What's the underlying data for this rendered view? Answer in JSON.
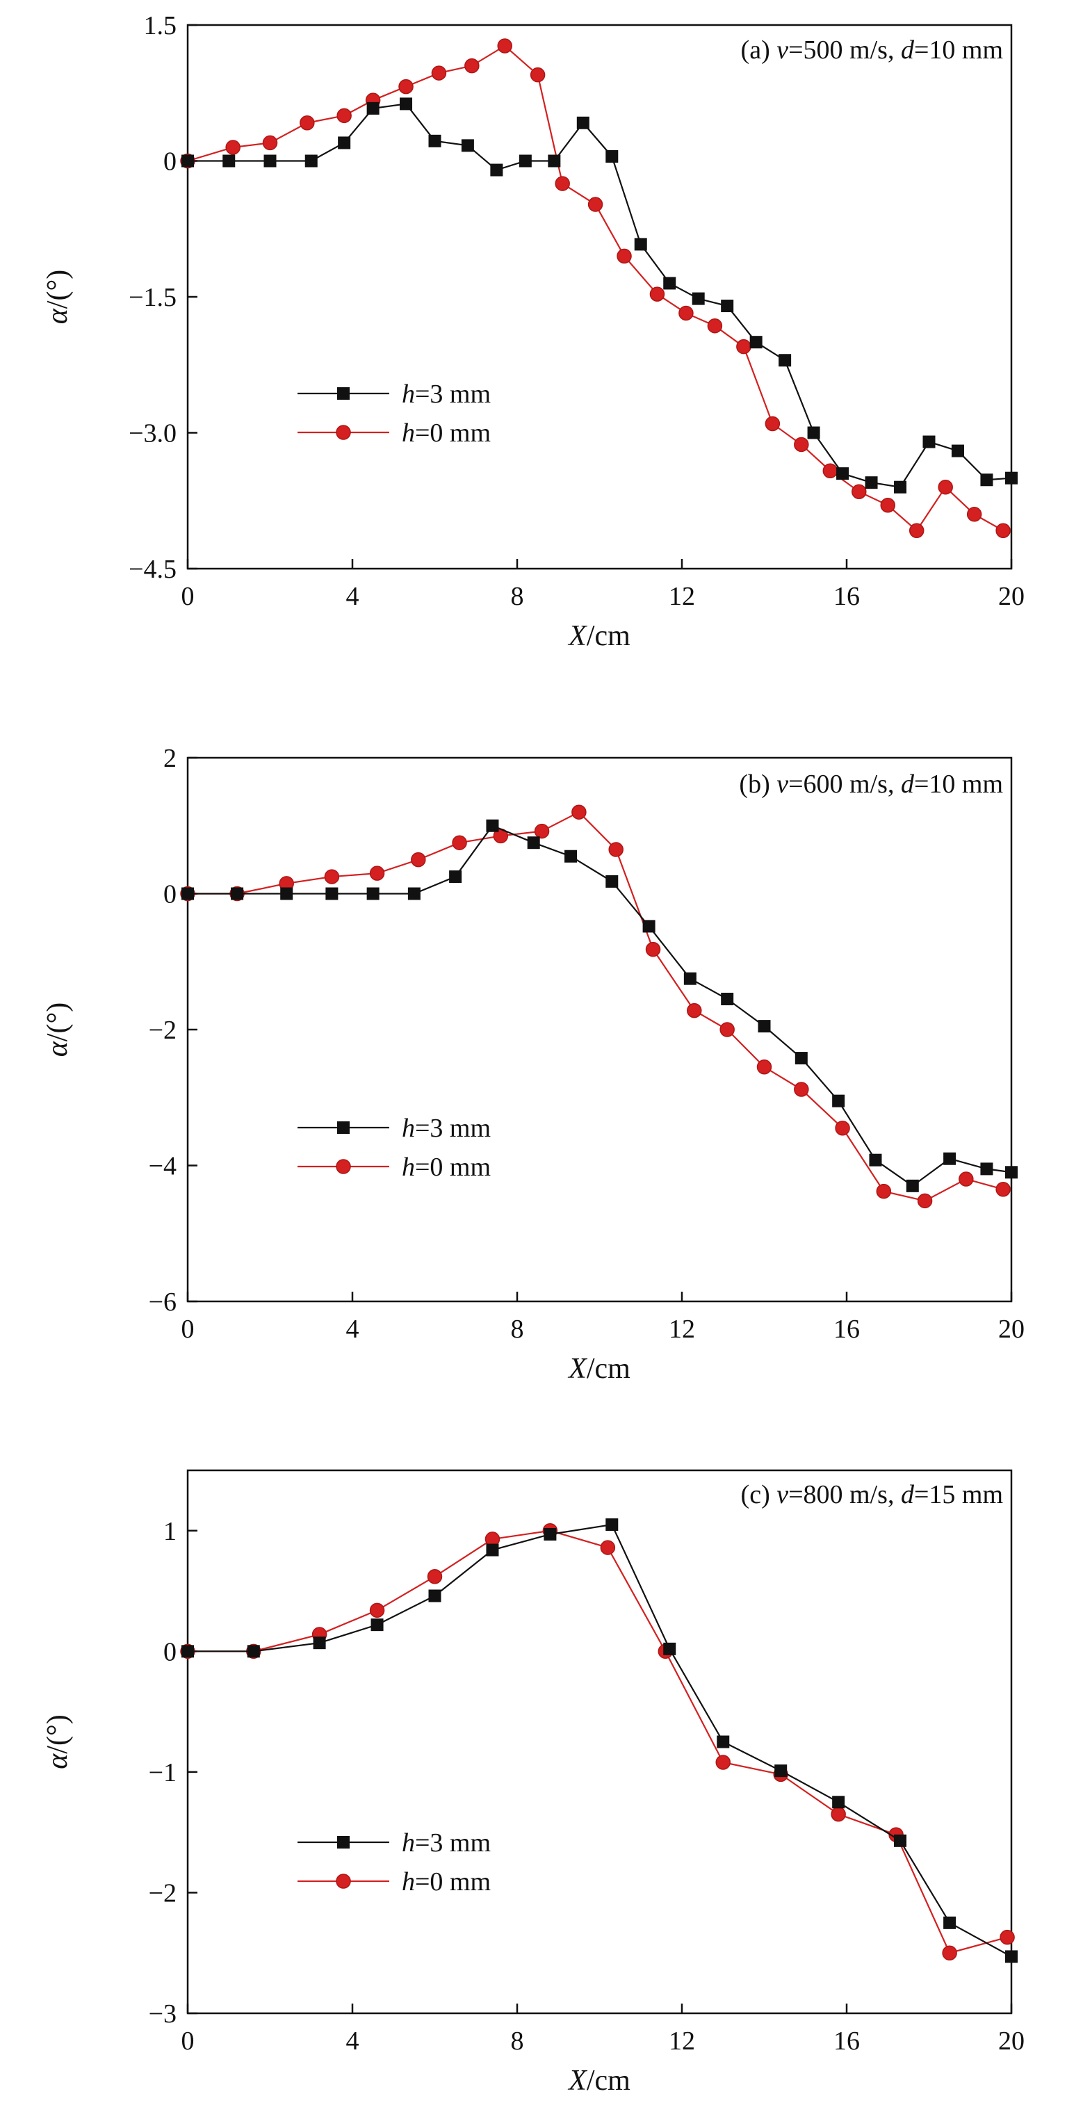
{
  "colors": {
    "h3": "#111111",
    "h0": "#d42020",
    "axis": "#111111"
  },
  "chart_data": [
    {
      "type": "line",
      "title": {
        "prefix": "(a) ",
        "v_var": "v",
        "v_rest": "=500 m/s, ",
        "d_var": "d",
        "d_rest": "=10 mm"
      },
      "xlabel": {
        "var": "X",
        "rest": "/cm"
      },
      "ylabel": {
        "var": "α",
        "rest": "/(°)"
      },
      "xlim": [
        0,
        20
      ],
      "ylim": [
        -4.5,
        1.5
      ],
      "xticks": [
        0,
        4,
        8,
        12,
        16,
        20
      ],
      "xtick_labels": [
        "0",
        "4",
        "8",
        "12",
        "16",
        "20"
      ],
      "yticks": [
        -4.5,
        -3.0,
        -1.5,
        0,
        1.5
      ],
      "ytick_labels": [
        "−4.5",
        "−3.0",
        "−1.5",
        "0",
        "1.5"
      ],
      "legend": {
        "location": "center-left",
        "entries": [
          {
            "var": "h",
            "rest": "=3 mm"
          },
          {
            "var": "h",
            "rest": "=0 mm"
          }
        ]
      },
      "series": [
        {
          "name": "h=3 mm",
          "marker": "square",
          "x": [
            0,
            1.0,
            2.0,
            3.0,
            3.8,
            4.5,
            5.3,
            6.0,
            6.8,
            7.5,
            8.2,
            8.9,
            9.6,
            10.3,
            11.0,
            11.7,
            12.4,
            13.1,
            13.8,
            14.5,
            15.2,
            15.9,
            16.6,
            17.3,
            18.0,
            18.7,
            19.4,
            20.0
          ],
          "y": [
            0,
            0,
            0,
            0,
            0.2,
            0.58,
            0.63,
            0.22,
            0.17,
            -0.1,
            0,
            0,
            0.42,
            0.05,
            -0.92,
            -1.35,
            -1.52,
            -1.6,
            -2.0,
            -2.2,
            -3.0,
            -3.45,
            -3.55,
            -3.6,
            -3.1,
            -3.2,
            -3.52,
            -3.5
          ]
        },
        {
          "name": "h=0 mm",
          "marker": "circle",
          "x": [
            0,
            1.1,
            2.0,
            2.9,
            3.8,
            4.5,
            5.3,
            6.1,
            6.9,
            7.7,
            8.5,
            9.1,
            9.9,
            10.6,
            11.4,
            12.1,
            12.8,
            13.5,
            14.2,
            14.9,
            15.6,
            16.3,
            17.0,
            17.7,
            18.4,
            19.1,
            19.8
          ],
          "y": [
            0,
            0.15,
            0.2,
            0.42,
            0.5,
            0.67,
            0.82,
            0.97,
            1.05,
            1.27,
            0.95,
            -0.25,
            -0.48,
            -1.05,
            -1.47,
            -1.68,
            -1.82,
            -2.05,
            -2.9,
            -3.13,
            -3.42,
            -3.65,
            -3.8,
            -4.08,
            -3.6,
            -3.9,
            -4.08
          ]
        }
      ]
    },
    {
      "type": "line",
      "title": {
        "prefix": "(b) ",
        "v_var": "v",
        "v_rest": "=600 m/s, ",
        "d_var": "d",
        "d_rest": "=10 mm"
      },
      "xlabel": {
        "var": "X",
        "rest": "/cm"
      },
      "ylabel": {
        "var": "α",
        "rest": "/(°)"
      },
      "xlim": [
        0,
        20
      ],
      "ylim": [
        -6,
        2
      ],
      "xticks": [
        0,
        4,
        8,
        12,
        16,
        20
      ],
      "xtick_labels": [
        "0",
        "4",
        "8",
        "12",
        "16",
        "20"
      ],
      "yticks": [
        -6,
        -4,
        -2,
        0,
        2
      ],
      "ytick_labels": [
        "−6",
        "−4",
        "−2",
        "0",
        "2"
      ],
      "legend": {
        "location": "center-left",
        "entries": [
          {
            "var": "h",
            "rest": "=3 mm"
          },
          {
            "var": "h",
            "rest": "=0 mm"
          }
        ]
      },
      "series": [
        {
          "name": "h=3 mm",
          "marker": "square",
          "x": [
            0,
            1.2,
            2.4,
            3.5,
            4.5,
            5.5,
            6.5,
            7.4,
            8.4,
            9.3,
            10.3,
            11.2,
            12.2,
            13.1,
            14.0,
            14.9,
            15.8,
            16.7,
            17.6,
            18.5,
            19.4,
            20.0
          ],
          "y": [
            0,
            0,
            0,
            0,
            0,
            0,
            0.25,
            1.0,
            0.75,
            0.55,
            0.18,
            -0.48,
            -1.25,
            -1.55,
            -1.95,
            -2.42,
            -3.05,
            -3.92,
            -4.3,
            -3.9,
            -4.05,
            -4.1
          ]
        },
        {
          "name": "h=0 mm",
          "marker": "circle",
          "x": [
            0,
            1.2,
            2.4,
            3.5,
            4.6,
            5.6,
            6.6,
            7.6,
            8.6,
            9.5,
            10.4,
            11.3,
            12.3,
            13.1,
            14.0,
            14.9,
            15.9,
            16.9,
            17.9,
            18.9,
            19.8
          ],
          "y": [
            0,
            0,
            0.15,
            0.25,
            0.3,
            0.5,
            0.75,
            0.85,
            0.92,
            1.2,
            0.65,
            -0.82,
            -1.72,
            -2.0,
            -2.55,
            -2.88,
            -3.45,
            -4.38,
            -4.52,
            -4.2,
            -4.35
          ]
        }
      ]
    },
    {
      "type": "line",
      "title": {
        "prefix": "(c) ",
        "v_var": "v",
        "v_rest": "=800 m/s, ",
        "d_var": "d",
        "d_rest": "=15 mm"
      },
      "xlabel": {
        "var": "X",
        "rest": "/cm"
      },
      "ylabel": {
        "var": "α",
        "rest": "/(°)"
      },
      "xlim": [
        0,
        20
      ],
      "ylim": [
        -3,
        1.5
      ],
      "xticks": [
        0,
        4,
        8,
        12,
        16,
        20
      ],
      "xtick_labels": [
        "0",
        "4",
        "8",
        "12",
        "16",
        "20"
      ],
      "yticks": [
        -3,
        -2,
        -1,
        0,
        1
      ],
      "ytick_labels": [
        "−3",
        "−2",
        "−1",
        "0",
        "1"
      ],
      "legend": {
        "location": "bottom-left",
        "entries": [
          {
            "var": "h",
            "rest": "=3 mm"
          },
          {
            "var": "h",
            "rest": "=0 mm"
          }
        ]
      },
      "series": [
        {
          "name": "h=3 mm",
          "marker": "square",
          "x": [
            0,
            1.6,
            3.2,
            4.6,
            6.0,
            7.4,
            8.8,
            10.3,
            11.7,
            13.0,
            14.4,
            15.8,
            17.3,
            18.5,
            20.0
          ],
          "y": [
            0,
            0,
            0.07,
            0.22,
            0.46,
            0.84,
            0.97,
            1.05,
            0.02,
            -0.75,
            -0.99,
            -1.25,
            -1.57,
            -2.25,
            -2.53
          ]
        },
        {
          "name": "h=0 mm",
          "marker": "circle",
          "x": [
            0,
            1.6,
            3.2,
            4.6,
            6.0,
            7.4,
            8.8,
            10.2,
            11.6,
            13.0,
            14.4,
            15.8,
            17.2,
            18.5,
            19.9
          ],
          "y": [
            0,
            0,
            0.14,
            0.34,
            0.62,
            0.93,
            1.0,
            0.86,
            0,
            -0.92,
            -1.02,
            -1.35,
            -1.52,
            -2.5,
            -2.37
          ]
        }
      ]
    }
  ]
}
